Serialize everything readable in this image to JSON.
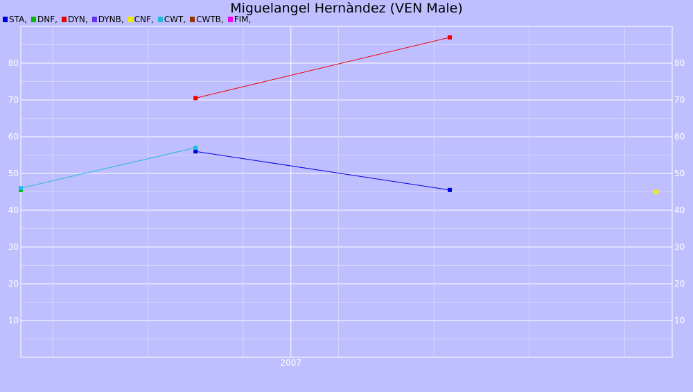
{
  "chart_data": {
    "type": "line",
    "title": "Miguelangel Hernàndez (VEN Male)",
    "xlabel": "",
    "ylabel": "",
    "x_ticks": [
      "2007"
    ],
    "ylim": [
      0,
      90
    ],
    "y_ticks": [
      10,
      20,
      30,
      40,
      50,
      60,
      70,
      80
    ],
    "grid": true,
    "legend_position": "top-left",
    "legend": [
      {
        "label": "STA,",
        "color": "#0000dd"
      },
      {
        "label": "DNF,",
        "color": "#00bb00"
      },
      {
        "label": "DYN,",
        "color": "#ee0000"
      },
      {
        "label": "DYNB,",
        "color": "#6633ee"
      },
      {
        "label": "CNF,",
        "color": "#eeee00"
      },
      {
        "label": "CWT,",
        "color": "#22bbdd"
      },
      {
        "label": "CWTB,",
        "color": "#993300"
      },
      {
        "label": "FIM,",
        "color": "#ee00ee"
      }
    ],
    "series": [
      {
        "name": "STA",
        "color": "#0000dd",
        "points": [
          {
            "x": "2006-07",
            "y": 56
          },
          {
            "x": "2007-11",
            "y": 45.5
          }
        ]
      },
      {
        "name": "DNF",
        "color": "#00bb00",
        "points": [
          {
            "x": "2005-08",
            "y": 45.5
          }
        ]
      },
      {
        "name": "DYN",
        "color": "#ee0000",
        "points": [
          {
            "x": "2006-07",
            "y": 70.5
          },
          {
            "x": "2007-11",
            "y": 87
          }
        ]
      },
      {
        "name": "CNF",
        "color": "#eeee00",
        "points": [
          {
            "x": "2008-12",
            "y": 45
          }
        ]
      },
      {
        "name": "CWT",
        "color": "#22bbdd",
        "points": [
          {
            "x": "2005-08",
            "y": 46
          },
          {
            "x": "2006-07",
            "y": 57
          }
        ]
      }
    ]
  }
}
